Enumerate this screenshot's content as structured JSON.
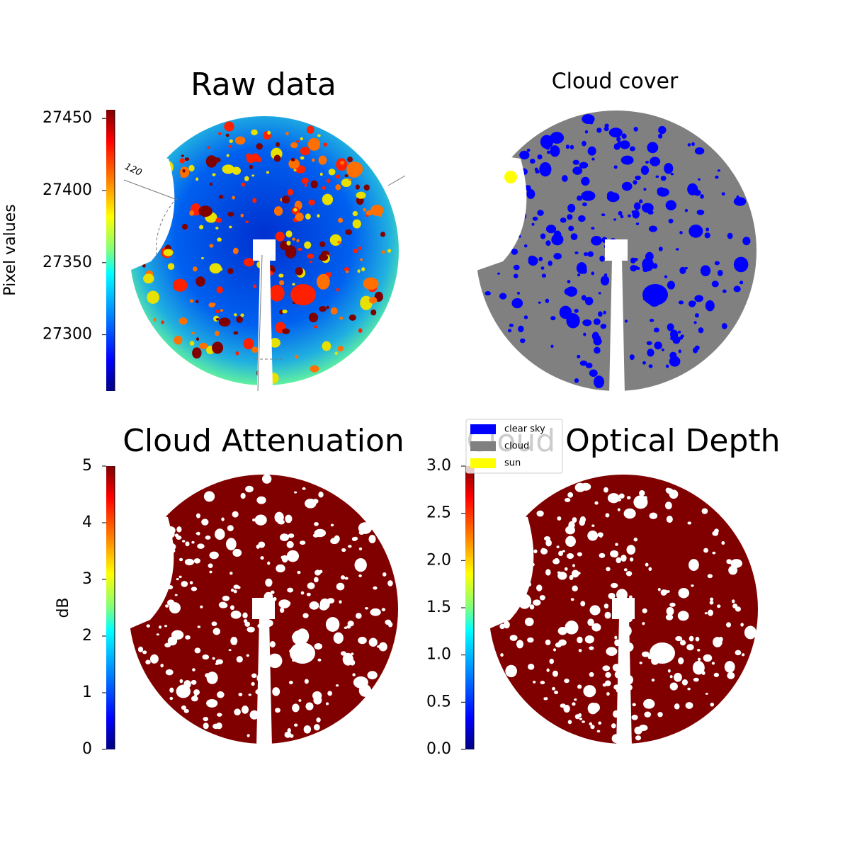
{
  "chart_data": [
    {
      "type": "image",
      "title": "Raw data",
      "colorbar_label": "Pixel values",
      "colormap": "jet",
      "ylim": [
        27261,
        27456
      ],
      "yticks": [
        27300,
        27350,
        27400,
        27450
      ],
      "annotations": [
        "120"
      ]
    },
    {
      "type": "image",
      "title": "Cloud cover",
      "legend": [
        {
          "name": "clear sky",
          "color": "#0000ff"
        },
        {
          "name": "cloud",
          "color": "#808080"
        },
        {
          "name": "sun",
          "color": "#ffff00"
        }
      ]
    },
    {
      "type": "image",
      "title": "Cloud Attenuation",
      "colorbar_label": "dB",
      "colormap": "jet",
      "ylim": [
        0,
        5
      ],
      "yticks": [
        0,
        1,
        2,
        3,
        4,
        5
      ]
    },
    {
      "type": "image",
      "title": "Cloud Optical Depth",
      "colormap": "jet",
      "ylim": [
        0,
        3
      ],
      "yticks": [
        {
          "value": 0,
          "label": "0.0"
        },
        {
          "value": 0.5,
          "label": "0.5"
        },
        {
          "value": 1,
          "label": "1.0"
        },
        {
          "value": 1.5,
          "label": "1.5"
        },
        {
          "value": 2,
          "label": "2.0"
        },
        {
          "value": 2.5,
          "label": "2.5"
        },
        {
          "value": 3,
          "label": "3.0"
        }
      ]
    }
  ]
}
